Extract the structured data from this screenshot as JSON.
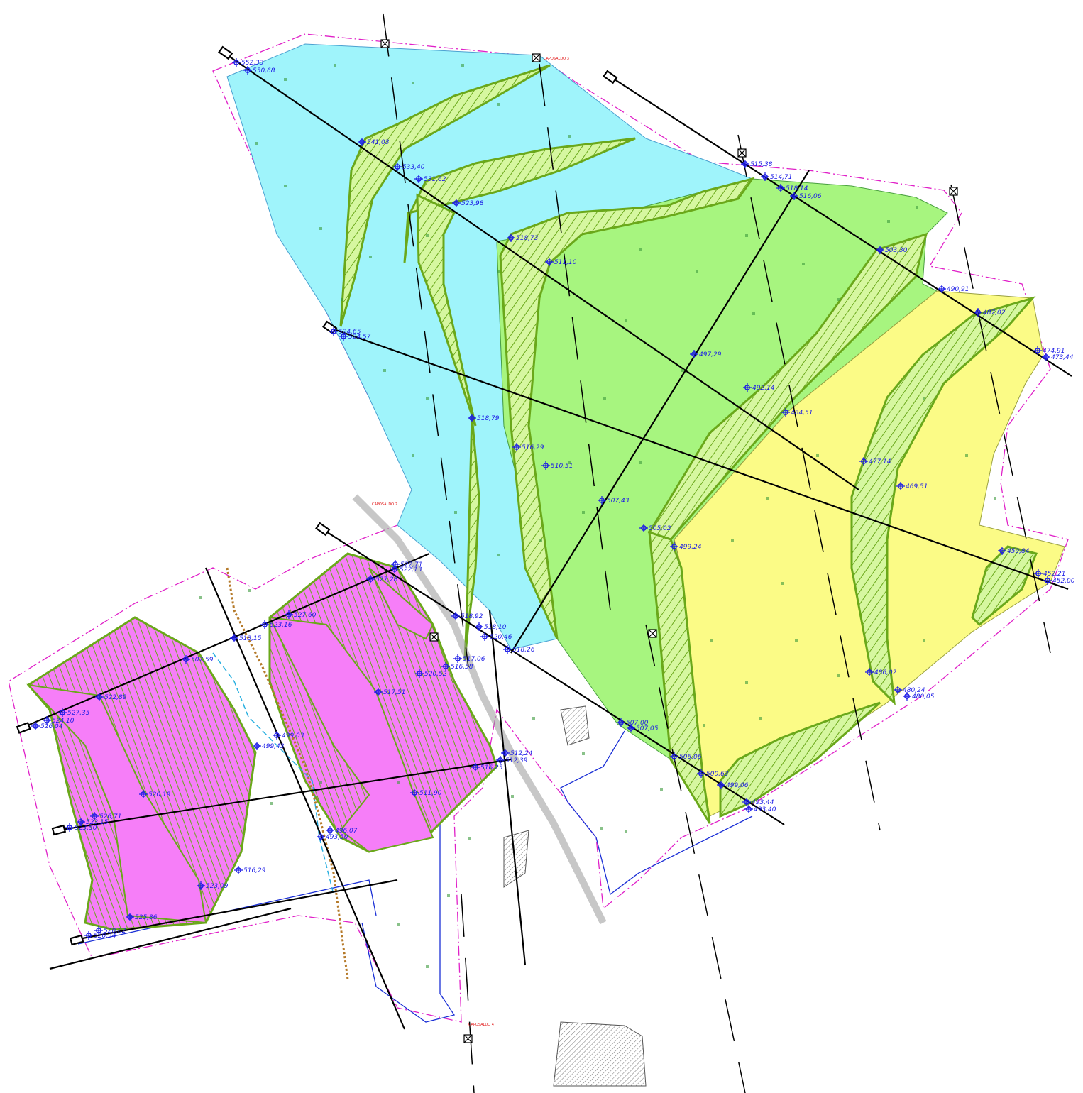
{
  "colors": {
    "zone_cyan": "#9ff4fb",
    "zone_green": "#a7f57f",
    "zone_yellow": "#fbfb86",
    "zone_magenta": "#f67ef8",
    "embankment": "#7ab320",
    "section_line": "#000000",
    "label": "#1a1ae6",
    "boundary_magenta": "#e020c8",
    "boundary_blue": "#1a2fd6",
    "stream": "#2ab0e0",
    "benchmark_label": "#e01010"
  },
  "icons": [
    "crosshair-target-icon",
    "section-marker-icon",
    "benchmark-box-icon",
    "hatched-building-icon",
    "tree-symbol-icon"
  ],
  "benchmarks": [
    "CAPOSALDO 3",
    "CAPOSALDO 2",
    "CAPOSALDO 4"
  ],
  "elevation_labels": [
    {
      "text": "552,33"
    },
    {
      "text": "550,68"
    },
    {
      "text": "541,03"
    },
    {
      "text": "533,40"
    },
    {
      "text": "531,62"
    },
    {
      "text": "523,98"
    },
    {
      "text": "518,73"
    },
    {
      "text": "511,10"
    },
    {
      "text": "515,38"
    },
    {
      "text": "514,71"
    },
    {
      "text": "518,14"
    },
    {
      "text": "516,06"
    },
    {
      "text": "503,30"
    },
    {
      "text": "490,91"
    },
    {
      "text": "487,02"
    },
    {
      "text": "474,91"
    },
    {
      "text": "473,44"
    },
    {
      "text": "497,29"
    },
    {
      "text": "492,14"
    },
    {
      "text": "484,51"
    },
    {
      "text": "477,14"
    },
    {
      "text": "469,51"
    },
    {
      "text": "459,84"
    },
    {
      "text": "452,21"
    },
    {
      "text": "452,00"
    },
    {
      "text": "524,65"
    },
    {
      "text": "524,57"
    },
    {
      "text": "518,79"
    },
    {
      "text": "516,29"
    },
    {
      "text": "510,51"
    },
    {
      "text": "507,43"
    },
    {
      "text": "505,02"
    },
    {
      "text": "499,24"
    },
    {
      "text": "486,02"
    },
    {
      "text": "480,24"
    },
    {
      "text": "480,05"
    },
    {
      "text": "507,00"
    },
    {
      "text": "507,05"
    },
    {
      "text": "506,06"
    },
    {
      "text": "500,63"
    },
    {
      "text": "499,06"
    },
    {
      "text": "493,44"
    },
    {
      "text": "493,40"
    },
    {
      "text": "522,71"
    },
    {
      "text": "522,13"
    },
    {
      "text": "527,28"
    },
    {
      "text": "527,60"
    },
    {
      "text": "523,16"
    },
    {
      "text": "513,15"
    },
    {
      "text": "518,92"
    },
    {
      "text": "518,10"
    },
    {
      "text": "520,46"
    },
    {
      "text": "518,26"
    },
    {
      "text": "507,59"
    },
    {
      "text": "517,06"
    },
    {
      "text": "516,58"
    },
    {
      "text": "520,52"
    },
    {
      "text": "522,89"
    },
    {
      "text": "517,51"
    },
    {
      "text": "527,35"
    },
    {
      "text": "524,10"
    },
    {
      "text": "526,04"
    },
    {
      "text": "499,03"
    },
    {
      "text": "499,43"
    },
    {
      "text": "512,24"
    },
    {
      "text": "512,39"
    },
    {
      "text": "516,25"
    },
    {
      "text": "520,19"
    },
    {
      "text": "511,90"
    },
    {
      "text": "526,71"
    },
    {
      "text": "523,15"
    },
    {
      "text": "523,50"
    },
    {
      "text": "496,07"
    },
    {
      "text": "493,50"
    },
    {
      "text": "516,29"
    },
    {
      "text": "523,09"
    },
    {
      "text": "525,86"
    },
    {
      "text": "520,02"
    },
    {
      "text": "520,34"
    }
  ]
}
